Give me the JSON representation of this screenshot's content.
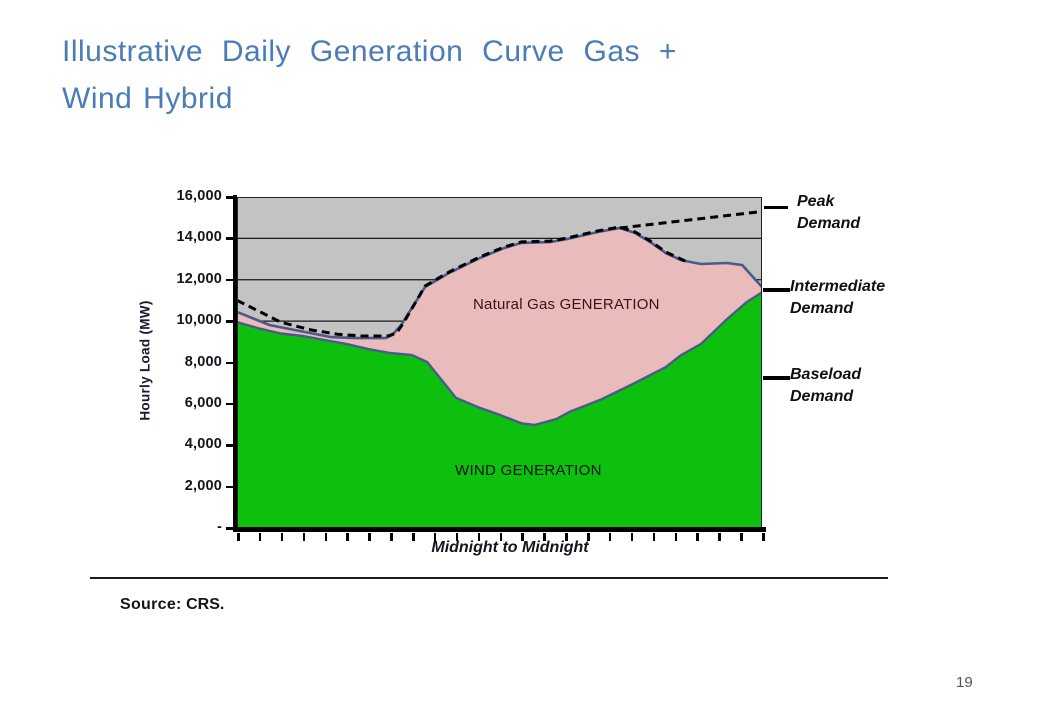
{
  "slide": {
    "title_line1": "Illustrative Daily Generation Curve Gas +",
    "title_line2": "Wind Hybrid",
    "source_label": "Source:",
    "source_value": "CRS.",
    "page_number": "19"
  },
  "chart": {
    "y_axis_title": "Hourly Load (MW)",
    "x_axis_label": "Midnight to Midnight",
    "y_ticks": [
      "16,000",
      "14,000",
      "12,000",
      "10,000",
      "8,000",
      "6,000",
      "4,000",
      "2,000",
      "-"
    ],
    "x_tick_count": 25,
    "gas_area_label": "Natural Gas GENERATION",
    "wind_area_label": "WIND GENERATION",
    "annotations": [
      {
        "line1": "Peak",
        "line2": "Demand"
      },
      {
        "line1": "Intermediate",
        "line2": "Demand"
      },
      {
        "line1": "Baseload",
        "line2": "Demand"
      }
    ],
    "colors": {
      "title_blue": "#4a7cb8",
      "wind_green": "#0ec00e",
      "gas_pink": "#e9bcbb",
      "plot_bg_gray": "#c3c3c3",
      "curve_stroke_navy": "#4a5a8a",
      "gridline": "#1a1a1a",
      "demand_black": "#000000"
    }
  },
  "chart_data": {
    "type": "area",
    "title": "Illustrative Daily Generation Curve Gas + Wind Hybrid",
    "xlabel": "Midnight to Midnight",
    "ylabel": "Hourly Load (MW)",
    "xlim": [
      0,
      24
    ],
    "ylim": [
      0,
      16000
    ],
    "y_tick_values": [
      0,
      2000,
      4000,
      6000,
      8000,
      10000,
      12000,
      14000,
      16000
    ],
    "grid": "horizontal",
    "series": [
      {
        "name": "WIND GENERATION",
        "role": "wind",
        "style": "filled area from 0",
        "color": "#0ec00e",
        "points": [
          [
            0,
            9950
          ],
          [
            1,
            9650
          ],
          [
            2,
            9400
          ],
          [
            3,
            9280
          ],
          [
            4,
            9090
          ],
          [
            5,
            8900
          ],
          [
            6,
            8650
          ],
          [
            7,
            8460
          ],
          [
            8,
            8360
          ],
          [
            8.7,
            8020
          ],
          [
            10,
            6300
          ],
          [
            11,
            5850
          ],
          [
            12,
            5470
          ],
          [
            13,
            5060
          ],
          [
            13.6,
            4980
          ],
          [
            14.6,
            5270
          ],
          [
            15.2,
            5610
          ],
          [
            16.6,
            6190
          ],
          [
            18,
            6910
          ],
          [
            19.6,
            7780
          ],
          [
            20.3,
            8360
          ],
          [
            21.2,
            8890
          ],
          [
            22.4,
            10100
          ],
          [
            23.3,
            10920
          ],
          [
            24,
            11400
          ]
        ]
      },
      {
        "name": "Total generation (wind + natural gas); Natural Gas GENERATION is the band between this curve and the wind curve",
        "role": "total",
        "style": "filled area from 0, drawn under wind area",
        "color": "#e9bcbb",
        "points": [
          [
            0,
            10440
          ],
          [
            1.5,
            9810
          ],
          [
            2.9,
            9520
          ],
          [
            4.3,
            9230
          ],
          [
            5.4,
            9180
          ],
          [
            6.8,
            9180
          ],
          [
            7.1,
            9330
          ],
          [
            7.5,
            9810
          ],
          [
            8.6,
            11650
          ],
          [
            9.7,
            12330
          ],
          [
            11.1,
            13050
          ],
          [
            12.2,
            13530
          ],
          [
            13,
            13780
          ],
          [
            14.3,
            13820
          ],
          [
            15.1,
            13970
          ],
          [
            16.5,
            14310
          ],
          [
            17.5,
            14500
          ],
          [
            18.2,
            14260
          ],
          [
            18.9,
            13820
          ],
          [
            19.6,
            13290
          ],
          [
            20.3,
            12950
          ],
          [
            21.2,
            12760
          ],
          [
            22.4,
            12810
          ],
          [
            23.1,
            12710
          ],
          [
            23.5,
            12230
          ],
          [
            24,
            11650
          ]
        ]
      },
      {
        "name": "Demand",
        "role": "demand",
        "style": "black dashed line",
        "color": "#000000",
        "points": [
          [
            0,
            11000
          ],
          [
            1,
            10480
          ],
          [
            2,
            9950
          ],
          [
            3.4,
            9570
          ],
          [
            4.6,
            9370
          ],
          [
            5.7,
            9280
          ],
          [
            6.9,
            9280
          ],
          [
            7.3,
            9430
          ],
          [
            7.6,
            9900
          ],
          [
            8.6,
            11700
          ],
          [
            9.7,
            12380
          ],
          [
            11.1,
            13100
          ],
          [
            12.2,
            13580
          ],
          [
            13,
            13830
          ],
          [
            14.3,
            13870
          ],
          [
            15.1,
            14020
          ],
          [
            16.5,
            14360
          ],
          [
            17.5,
            14550
          ],
          [
            18.2,
            14310
          ],
          [
            18.9,
            13870
          ],
          [
            19.6,
            13340
          ],
          [
            20.6,
            12850
          ]
        ]
      },
      {
        "name": "Peak demand trend (points toward Peak Demand label)",
        "role": "trend",
        "style": "black dashed straight line",
        "color": "#000000",
        "points": [
          [
            17.5,
            14500
          ],
          [
            24,
            15300
          ]
        ]
      }
    ]
  }
}
